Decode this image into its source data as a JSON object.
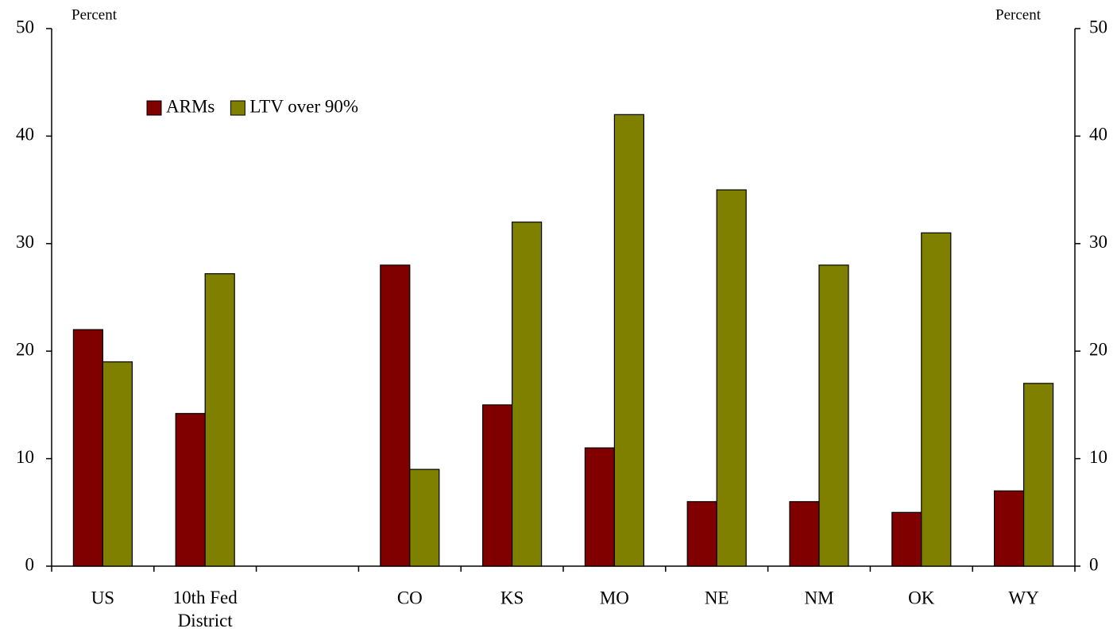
{
  "chart_data": {
    "type": "bar",
    "y_label": "Percent",
    "y2_label": "Percent",
    "categories": [
      "US",
      "10th Fed\nDistrict",
      null,
      "CO",
      "KS",
      "MO",
      "NE",
      "NM",
      "OK",
      "WY"
    ],
    "series": [
      {
        "name": "ARMs",
        "color": "#800000",
        "values": [
          22,
          14.2,
          null,
          28,
          15,
          11,
          6,
          6,
          5,
          7
        ]
      },
      {
        "name": "LTV over 90%",
        "color": "#808000",
        "values": [
          19,
          27.2,
          null,
          9,
          32,
          42,
          35,
          28,
          31,
          17
        ],
        "axis": "y"
      }
    ],
    "ylim": [
      0,
      50
    ],
    "yticks": [
      0,
      10,
      20,
      30,
      40,
      50
    ],
    "y2lim": [
      0,
      50
    ],
    "y2ticks": [
      0,
      10,
      20,
      30,
      40,
      50
    ],
    "legend": "upper left",
    "grid": false
  }
}
